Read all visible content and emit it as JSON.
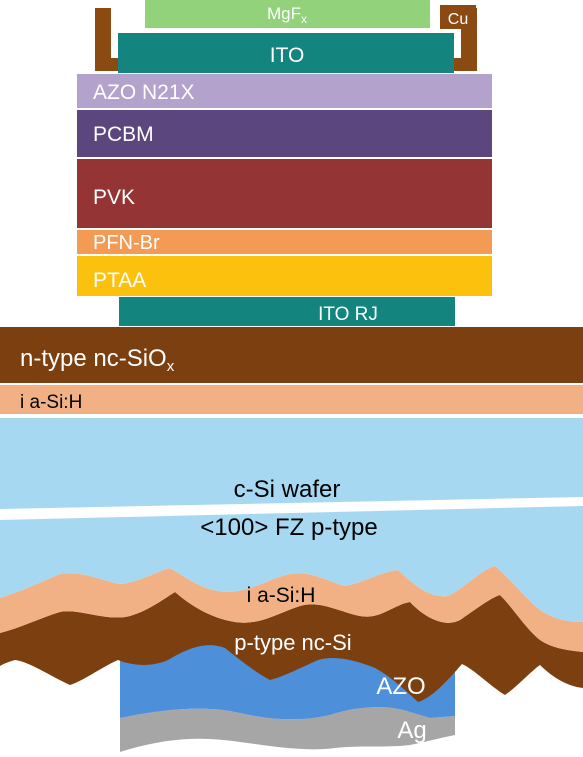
{
  "layers": {
    "mgf": {
      "label": "MgF",
      "sub": "x",
      "color": "#92d27a"
    },
    "cu": {
      "label": "Cu",
      "color": "#8a4a12"
    },
    "ito": {
      "label": "ITO",
      "color": "#14857e"
    },
    "azo_n21x": {
      "label": "AZO N21X",
      "color": "#b3a2cc"
    },
    "pcbm": {
      "label": "PCBM",
      "color": "#5b467e"
    },
    "pvk": {
      "label": "PVK",
      "color": "#943435"
    },
    "pfn_br": {
      "label": "PFN-Br",
      "color": "#f39a55"
    },
    "ptaa": {
      "label": "PTAA",
      "color": "#fcc10d"
    },
    "ito_rj": {
      "label": "ITO RJ",
      "color": "#14857e"
    },
    "n_type": {
      "label": "n-type nc-SiO",
      "sub": "x",
      "color": "#7c3f10"
    },
    "i_asi_top": {
      "label": "i a-Si:H",
      "color": "#f2b185"
    },
    "csi_wafer": {
      "label_line1": "c-Si wafer",
      "label_line2": "<100> FZ p-type",
      "color": "#a6d9f1"
    },
    "i_asi_bottom": {
      "label": "i a-Si:H",
      "color": "#f2b185"
    },
    "p_type": {
      "label": "p-type nc-Si",
      "color": "#7c3f10"
    },
    "azo": {
      "label": "AZO",
      "color": "#4d8fd8"
    },
    "ag": {
      "label": "Ag",
      "color": "#a6a6a6"
    }
  }
}
